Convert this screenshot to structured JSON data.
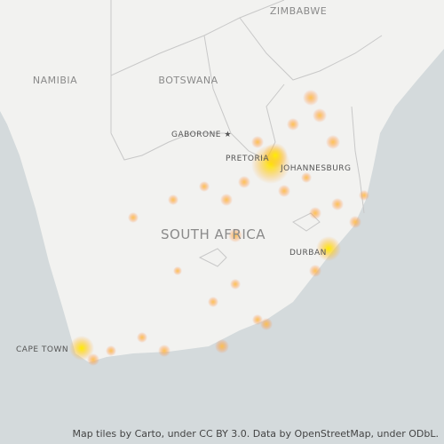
{
  "labels": {
    "zimbabwe": "ZIMBABWE",
    "namibia": "NAMIBIA",
    "botswana": "BOTSWANA",
    "gaborone": "GABORONE ★",
    "pretoria": "PRETORIA",
    "johannesburg": "JOHANNESBURG",
    "south_africa": "SOUTH AFRICA",
    "durban": "DURBAN",
    "cape_town": "CAPE TOWN"
  },
  "attribution": "Map tiles by Carto, under CC BY 3.0. Data by OpenStreetMap, under ODbL."
}
